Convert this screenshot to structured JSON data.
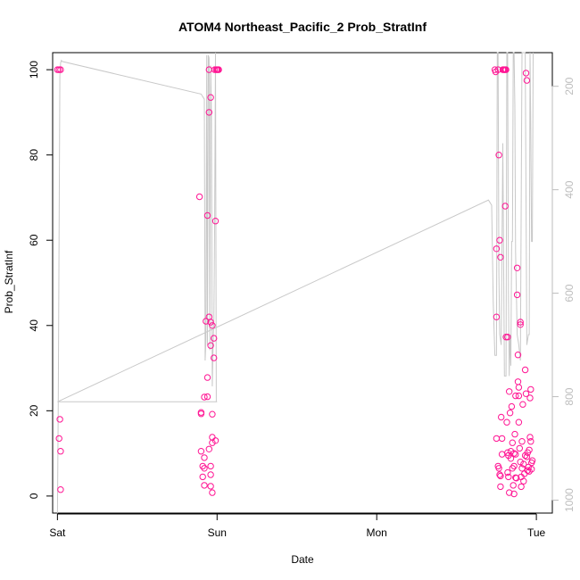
{
  "chart_data": {
    "type": "scatter",
    "title": "ATOM4 Northeast_Pacific_2 Prob_StratInf",
    "xlabel": "Date",
    "ylabel": "Prob_StratInf",
    "x_ticks": [
      "Sat",
      "Sun",
      "Mon",
      "Tue"
    ],
    "xlim": [
      -0.03,
      3.1
    ],
    "ylim": [
      -4.0,
      104.0
    ],
    "y_ticks": [
      0,
      20,
      40,
      60,
      80,
      100
    ],
    "right_axis": {
      "ylim": [
        1025,
        135
      ],
      "ticks": [
        200,
        400,
        600,
        800,
        1000
      ],
      "color": "#bdbdbd"
    },
    "point_color": "#ff1493",
    "line_color": "#c8c8c8",
    "points": [
      [
        0.0,
        100
      ],
      [
        0.01,
        100
      ],
      [
        0.02,
        100
      ],
      [
        0.015,
        18
      ],
      [
        0.01,
        13.5
      ],
      [
        0.02,
        10.5
      ],
      [
        0.02,
        1.5
      ],
      [
        0.89,
        70.2
      ],
      [
        0.9,
        19.3
      ],
      [
        0.9,
        19.6
      ],
      [
        0.9,
        10.5
      ],
      [
        0.91,
        7.0
      ],
      [
        0.92,
        6.5
      ],
      [
        0.92,
        9.0
      ],
      [
        0.91,
        4.5
      ],
      [
        0.92,
        2.5
      ],
      [
        0.92,
        23.2
      ],
      [
        0.93,
        41.0
      ],
      [
        0.94,
        27.8
      ],
      [
        0.94,
        23.3
      ],
      [
        0.94,
        65.8
      ],
      [
        0.95,
        42.0
      ],
      [
        0.95,
        11.0
      ],
      [
        0.95,
        100
      ],
      [
        0.96,
        93.5
      ],
      [
        0.95,
        90.0
      ],
      [
        0.96,
        35.3
      ],
      [
        0.96,
        40.8
      ],
      [
        0.97,
        40.0
      ],
      [
        0.96,
        7.0
      ],
      [
        0.96,
        5.0
      ],
      [
        0.96,
        2.3
      ],
      [
        0.97,
        0.8
      ],
      [
        0.97,
        12.5
      ],
      [
        0.97,
        13.8
      ],
      [
        0.97,
        19.2
      ],
      [
        0.98,
        37.0
      ],
      [
        0.98,
        32.4
      ],
      [
        0.99,
        13.0
      ],
      [
        0.99,
        64.5
      ],
      [
        0.985,
        100
      ],
      [
        0.995,
        100
      ],
      [
        1.0,
        100
      ],
      [
        1.005,
        100
      ],
      [
        1.01,
        100
      ],
      [
        2.74,
        100
      ],
      [
        2.745,
        99.5
      ],
      [
        2.75,
        58
      ],
      [
        2.75,
        42
      ],
      [
        2.75,
        13.5
      ],
      [
        2.76,
        100
      ],
      [
        2.765,
        80
      ],
      [
        2.77,
        60
      ],
      [
        2.775,
        56
      ],
      [
        2.76,
        7
      ],
      [
        2.765,
        6.5
      ],
      [
        2.77,
        5
      ],
      [
        2.775,
        4.7
      ],
      [
        2.775,
        2.2
      ],
      [
        2.78,
        18.5
      ],
      [
        2.785,
        13.5
      ],
      [
        2.785,
        9.8
      ],
      [
        2.79,
        100
      ],
      [
        2.795,
        100
      ],
      [
        2.8,
        100
      ],
      [
        2.805,
        100
      ],
      [
        2.81,
        100
      ],
      [
        2.805,
        68.0
      ],
      [
        2.81,
        37.3
      ],
      [
        2.82,
        37.3
      ],
      [
        2.815,
        17.3
      ],
      [
        2.82,
        10.2
      ],
      [
        2.825,
        9.5
      ],
      [
        2.82,
        5.5
      ],
      [
        2.825,
        4.5
      ],
      [
        2.83,
        0.8
      ],
      [
        2.83,
        24.5
      ],
      [
        2.835,
        19.5
      ],
      [
        2.84,
        10.5
      ],
      [
        2.84,
        8.8
      ],
      [
        2.85,
        6.5
      ],
      [
        2.85,
        12.5
      ],
      [
        2.855,
        2.5
      ],
      [
        2.86,
        0.5
      ],
      [
        2.86,
        7.0
      ],
      [
        2.865,
        14.5
      ],
      [
        2.87,
        23.5
      ],
      [
        2.87,
        9.8
      ],
      [
        2.875,
        4.2
      ],
      [
        2.88,
        53.5
      ],
      [
        2.88,
        47.2
      ],
      [
        2.885,
        33.1
      ],
      [
        2.885,
        26.8
      ],
      [
        2.89,
        23.5
      ],
      [
        2.89,
        25.5
      ],
      [
        2.89,
        17.3
      ],
      [
        2.895,
        11.2
      ],
      [
        2.9,
        40.2
      ],
      [
        2.9,
        40.8
      ],
      [
        2.9,
        8.0
      ],
      [
        2.905,
        4.5
      ],
      [
        2.905,
        2.2
      ],
      [
        2.91,
        6.5
      ],
      [
        2.91,
        12.8
      ],
      [
        2.915,
        21.5
      ],
      [
        2.92,
        7.5
      ],
      [
        2.92,
        3.5
      ],
      [
        2.925,
        5.2
      ],
      [
        2.93,
        29.6
      ],
      [
        2.935,
        24.0
      ],
      [
        2.935,
        99.2
      ],
      [
        2.94,
        97.5
      ],
      [
        2.94,
        9.2
      ],
      [
        2.945,
        10.2
      ],
      [
        2.95,
        6.8
      ],
      [
        2.955,
        10.8
      ],
      [
        2.955,
        5.8
      ],
      [
        2.96,
        13.8
      ],
      [
        2.96,
        23.0
      ],
      [
        2.965,
        12.8
      ],
      [
        2.965,
        25.0
      ],
      [
        2.97,
        6.3
      ],
      [
        2.97,
        7.8
      ],
      [
        2.975,
        8.3
      ],
      [
        2.93,
        9.5
      ],
      [
        2.945,
        6.0
      ],
      [
        2.86,
        10.0
      ],
      [
        2.845,
        21.0
      ],
      [
        2.87,
        4.3
      ]
    ],
    "line": [
      [
        0.0,
        1025
      ],
      [
        0.005,
        810
      ],
      [
        0.015,
        180
      ],
      [
        0.02,
        155
      ],
      [
        0.025,
        150
      ],
      [
        0.03,
        152
      ],
      [
        0.9,
        215
      ],
      [
        0.92,
        225
      ],
      [
        0.925,
        730
      ],
      [
        0.93,
        690
      ],
      [
        0.935,
        140
      ],
      [
        0.94,
        700
      ],
      [
        0.945,
        140
      ],
      [
        0.95,
        145
      ],
      [
        0.955,
        710
      ],
      [
        0.96,
        160
      ],
      [
        0.965,
        260
      ],
      [
        0.97,
        780
      ],
      [
        0.975,
        700
      ],
      [
        0.98,
        650
      ],
      [
        0.985,
        450
      ],
      [
        0.99,
        135
      ],
      [
        0.995,
        810
      ],
      [
        1.0,
        810
      ],
      [
        0.0,
        810
      ],
      [
        2.7,
        420
      ],
      [
        2.72,
        430
      ],
      [
        2.73,
        620
      ],
      [
        2.74,
        720
      ],
      [
        2.75,
        720
      ],
      [
        2.755,
        135
      ],
      [
        2.76,
        135
      ],
      [
        2.765,
        560
      ],
      [
        2.77,
        680
      ],
      [
        2.78,
        700
      ],
      [
        2.79,
        310
      ],
      [
        2.8,
        760
      ],
      [
        2.81,
        760
      ],
      [
        2.815,
        135
      ],
      [
        2.82,
        135
      ],
      [
        2.825,
        600
      ],
      [
        2.83,
        760
      ],
      [
        2.835,
        680
      ],
      [
        2.84,
        740
      ],
      [
        2.845,
        500
      ],
      [
        2.85,
        500
      ],
      [
        2.855,
        135
      ],
      [
        2.86,
        135
      ],
      [
        2.865,
        240
      ],
      [
        2.87,
        520
      ],
      [
        2.88,
        680
      ],
      [
        2.89,
        700
      ],
      [
        2.9,
        730
      ],
      [
        2.91,
        135
      ],
      [
        2.93,
        135
      ],
      [
        2.94,
        700
      ],
      [
        2.95,
        680
      ],
      [
        2.955,
        680
      ],
      [
        2.96,
        135
      ],
      [
        2.965,
        280
      ],
      [
        2.97,
        500
      ],
      [
        2.975,
        500
      ],
      [
        2.98,
        135
      ]
    ]
  }
}
